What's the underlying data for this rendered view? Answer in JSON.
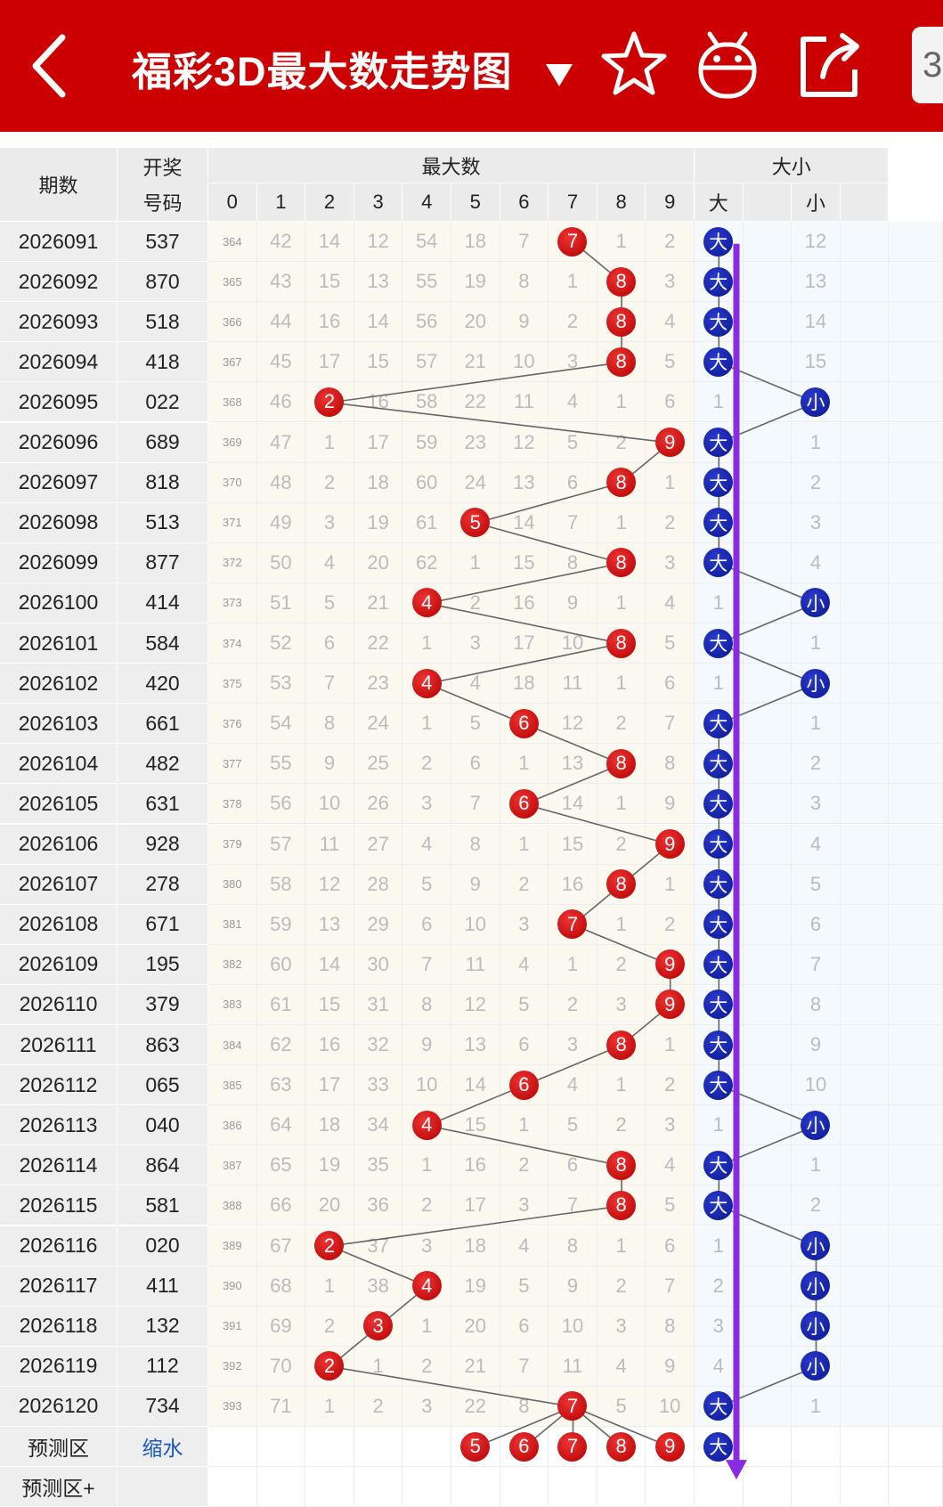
{
  "header": {
    "title": "福彩3D最大数走势图",
    "dropdown_icon": "triangle-down-icon",
    "right_tab_label": "3",
    "icons": [
      "back-arrow-icon",
      "star-icon",
      "android-icon",
      "share-icon"
    ],
    "colors": {
      "bar": "#cc0000",
      "red_ball": "#cc0000",
      "blue_ball": "#0a1690",
      "arrow": "#8a2be2"
    }
  },
  "table": {
    "col_issue": "期数",
    "col_draw_line1": "开奖",
    "col_draw_line2": "号码",
    "group_max": "最大数",
    "group_size": "大小",
    "max_digits": [
      "0",
      "1",
      "2",
      "3",
      "4",
      "5",
      "6",
      "7",
      "8",
      "9"
    ],
    "size_cols": [
      "大",
      "",
      "小",
      ""
    ],
    "ball_big": "大",
    "ball_small": "小",
    "rows": [
      {
        "issue": "2026091",
        "draw": "537",
        "max": 7,
        "cells": [
          "364",
          "42",
          "14",
          "12",
          "54",
          "18",
          "7",
          "7",
          "1",
          "2"
        ],
        "size": "big",
        "size_cells": [
          "大",
          "12"
        ]
      },
      {
        "issue": "2026092",
        "draw": "870",
        "max": 8,
        "cells": [
          "365",
          "43",
          "15",
          "13",
          "55",
          "19",
          "8",
          "1",
          "8",
          "3"
        ],
        "size": "big",
        "size_cells": [
          "大",
          "13"
        ]
      },
      {
        "issue": "2026093",
        "draw": "518",
        "max": 8,
        "cells": [
          "366",
          "44",
          "16",
          "14",
          "56",
          "20",
          "9",
          "2",
          "8",
          "4"
        ],
        "size": "big",
        "size_cells": [
          "大",
          "14"
        ]
      },
      {
        "issue": "2026094",
        "draw": "418",
        "max": 8,
        "cells": [
          "367",
          "45",
          "17",
          "15",
          "57",
          "21",
          "10",
          "3",
          "8",
          "5"
        ],
        "size": "big",
        "size_cells": [
          "大",
          "15"
        ]
      },
      {
        "issue": "2026095",
        "draw": "022",
        "max": 2,
        "cells": [
          "368",
          "46",
          "2",
          "16",
          "58",
          "22",
          "11",
          "4",
          "1",
          "6"
        ],
        "size": "small",
        "size_cells": [
          "1",
          "小"
        ]
      },
      {
        "issue": "2026096",
        "draw": "689",
        "max": 9,
        "cells": [
          "369",
          "47",
          "1",
          "17",
          "59",
          "23",
          "12",
          "5",
          "2",
          "9"
        ],
        "size": "big",
        "size_cells": [
          "大",
          "1"
        ]
      },
      {
        "issue": "2026097",
        "draw": "818",
        "max": 8,
        "cells": [
          "370",
          "48",
          "2",
          "18",
          "60",
          "24",
          "13",
          "6",
          "8",
          "1"
        ],
        "size": "big",
        "size_cells": [
          "大",
          "2"
        ]
      },
      {
        "issue": "2026098",
        "draw": "513",
        "max": 5,
        "cells": [
          "371",
          "49",
          "3",
          "19",
          "61",
          "5",
          "14",
          "7",
          "1",
          "2"
        ],
        "size": "big",
        "size_cells": [
          "大",
          "3"
        ]
      },
      {
        "issue": "2026099",
        "draw": "877",
        "max": 8,
        "cells": [
          "372",
          "50",
          "4",
          "20",
          "62",
          "1",
          "15",
          "8",
          "8",
          "3"
        ],
        "size": "big",
        "size_cells": [
          "大",
          "4"
        ]
      },
      {
        "issue": "2026100",
        "draw": "414",
        "max": 4,
        "cells": [
          "373",
          "51",
          "5",
          "21",
          "4",
          "2",
          "16",
          "9",
          "1",
          "4"
        ],
        "size": "small",
        "size_cells": [
          "1",
          "小"
        ]
      },
      {
        "issue": "2026101",
        "draw": "584",
        "max": 8,
        "cells": [
          "374",
          "52",
          "6",
          "22",
          "1",
          "3",
          "17",
          "10",
          "8",
          "5"
        ],
        "size": "big",
        "size_cells": [
          "大",
          "1"
        ]
      },
      {
        "issue": "2026102",
        "draw": "420",
        "max": 4,
        "cells": [
          "375",
          "53",
          "7",
          "23",
          "4",
          "4",
          "18",
          "11",
          "1",
          "6"
        ],
        "size": "small",
        "size_cells": [
          "1",
          "小"
        ]
      },
      {
        "issue": "2026103",
        "draw": "661",
        "max": 6,
        "cells": [
          "376",
          "54",
          "8",
          "24",
          "1",
          "5",
          "6",
          "12",
          "2",
          "7"
        ],
        "size": "big",
        "size_cells": [
          "大",
          "1"
        ]
      },
      {
        "issue": "2026104",
        "draw": "482",
        "max": 8,
        "cells": [
          "377",
          "55",
          "9",
          "25",
          "2",
          "6",
          "1",
          "13",
          "8",
          "8"
        ],
        "size": "big",
        "size_cells": [
          "大",
          "2"
        ]
      },
      {
        "issue": "2026105",
        "draw": "631",
        "max": 6,
        "cells": [
          "378",
          "56",
          "10",
          "26",
          "3",
          "7",
          "6",
          "14",
          "1",
          "9"
        ],
        "size": "big",
        "size_cells": [
          "大",
          "3"
        ]
      },
      {
        "issue": "2026106",
        "draw": "928",
        "max": 9,
        "cells": [
          "379",
          "57",
          "11",
          "27",
          "4",
          "8",
          "1",
          "15",
          "2",
          "9"
        ],
        "size": "big",
        "size_cells": [
          "大",
          "4"
        ]
      },
      {
        "issue": "2026107",
        "draw": "278",
        "max": 8,
        "cells": [
          "380",
          "58",
          "12",
          "28",
          "5",
          "9",
          "2",
          "16",
          "8",
          "1"
        ],
        "size": "big",
        "size_cells": [
          "大",
          "5"
        ]
      },
      {
        "issue": "2026108",
        "draw": "671",
        "max": 7,
        "cells": [
          "381",
          "59",
          "13",
          "29",
          "6",
          "10",
          "3",
          "7",
          "1",
          "2"
        ],
        "size": "big",
        "size_cells": [
          "大",
          "6"
        ]
      },
      {
        "issue": "2026109",
        "draw": "195",
        "max": 9,
        "cells": [
          "382",
          "60",
          "14",
          "30",
          "7",
          "11",
          "4",
          "1",
          "2",
          "9"
        ],
        "size": "big",
        "size_cells": [
          "大",
          "7"
        ]
      },
      {
        "issue": "2026110",
        "draw": "379",
        "max": 9,
        "cells": [
          "383",
          "61",
          "15",
          "31",
          "8",
          "12",
          "5",
          "2",
          "3",
          "9"
        ],
        "size": "big",
        "size_cells": [
          "大",
          "8"
        ]
      },
      {
        "issue": "2026111",
        "draw": "863",
        "max": 8,
        "cells": [
          "384",
          "62",
          "16",
          "32",
          "9",
          "13",
          "6",
          "3",
          "8",
          "1"
        ],
        "size": "big",
        "size_cells": [
          "大",
          "9"
        ]
      },
      {
        "issue": "2026112",
        "draw": "065",
        "max": 6,
        "cells": [
          "385",
          "63",
          "17",
          "33",
          "10",
          "14",
          "6",
          "4",
          "1",
          "2"
        ],
        "size": "big",
        "size_cells": [
          "大",
          "10"
        ]
      },
      {
        "issue": "2026113",
        "draw": "040",
        "max": 4,
        "cells": [
          "386",
          "64",
          "18",
          "34",
          "4",
          "15",
          "1",
          "5",
          "2",
          "3"
        ],
        "size": "small",
        "size_cells": [
          "1",
          "小"
        ]
      },
      {
        "issue": "2026114",
        "draw": "864",
        "max": 8,
        "cells": [
          "387",
          "65",
          "19",
          "35",
          "1",
          "16",
          "2",
          "6",
          "8",
          "4"
        ],
        "size": "big",
        "size_cells": [
          "大",
          "1"
        ]
      },
      {
        "issue": "2026115",
        "draw": "581",
        "max": 8,
        "cells": [
          "388",
          "66",
          "20",
          "36",
          "2",
          "17",
          "3",
          "7",
          "8",
          "5"
        ],
        "size": "big",
        "size_cells": [
          "大",
          "2"
        ]
      },
      {
        "issue": "2026116",
        "draw": "020",
        "max": 2,
        "cells": [
          "389",
          "67",
          "2",
          "37",
          "3",
          "18",
          "4",
          "8",
          "1",
          "6"
        ],
        "size": "small",
        "size_cells": [
          "1",
          "小"
        ]
      },
      {
        "issue": "2026117",
        "draw": "411",
        "max": 4,
        "cells": [
          "390",
          "68",
          "1",
          "38",
          "4",
          "19",
          "5",
          "9",
          "2",
          "7"
        ],
        "size": "small",
        "size_cells": [
          "2",
          "小"
        ]
      },
      {
        "issue": "2026118",
        "draw": "132",
        "max": 3,
        "cells": [
          "391",
          "69",
          "2",
          "3",
          "1",
          "20",
          "6",
          "10",
          "3",
          "8"
        ],
        "size": "small",
        "size_cells": [
          "3",
          "小"
        ]
      },
      {
        "issue": "2026119",
        "draw": "112",
        "max": 2,
        "cells": [
          "392",
          "70",
          "2",
          "1",
          "2",
          "21",
          "7",
          "11",
          "4",
          "9"
        ],
        "size": "small",
        "size_cells": [
          "4",
          "小"
        ]
      },
      {
        "issue": "2026120",
        "draw": "734",
        "max": 7,
        "cells": [
          "393",
          "71",
          "1",
          "2",
          "3",
          "22",
          "8",
          "7",
          "5",
          "10"
        ],
        "size": "big",
        "size_cells": [
          "大",
          "1"
        ]
      }
    ],
    "predict_row": {
      "label": "预测区",
      "action": "缩水",
      "balls": [
        "5",
        "6",
        "7",
        "8",
        "9"
      ],
      "size_ball": "大"
    },
    "predict_plus_label": "预测区+"
  }
}
